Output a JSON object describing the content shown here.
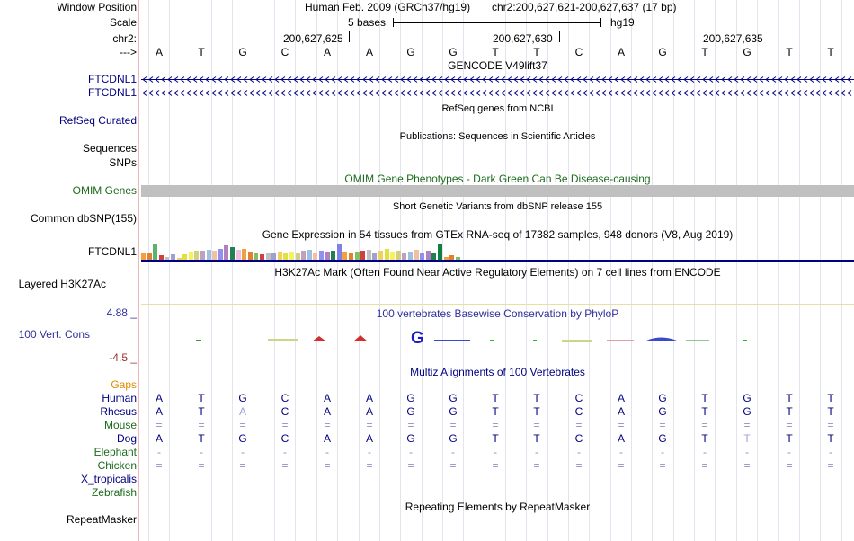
{
  "labels": {
    "window_position": "Window Position",
    "scale": "Scale",
    "chrom": "chr2:",
    "arrow": "--->",
    "ftcdnl1_a": "FTCDNL1",
    "ftcdnl1_b": "FTCDNL1",
    "refseq": "RefSeq Curated",
    "sequences": "Sequences",
    "snps": "SNPs",
    "omim": "OMIM Genes",
    "common_dbsnp": "Common dbSNP(155)",
    "gtex_gene": "FTCDNL1",
    "h3k27ac": "Layered H3K27Ac",
    "cons_max": "4.88 _",
    "cons_name": "100 Vert. Cons",
    "cons_min": "-4.5 _",
    "gaps": "Gaps",
    "repeatmasker": "RepeatMasker"
  },
  "header": {
    "assembly": "Human Feb. 2009 (GRCh37/hg19)",
    "position": "chr2:200,627,621-200,627,637 (17 bp)",
    "scale_text": "5 bases",
    "scale_db": "hg19",
    "ticks": [
      "200,627,625",
      "200,627,630",
      "200,627,635"
    ]
  },
  "bases": [
    "A",
    "T",
    "G",
    "C",
    "A",
    "A",
    "G",
    "G",
    "T",
    "T",
    "C",
    "A",
    "G",
    "T",
    "G",
    "T",
    "T"
  ],
  "tracks": {
    "gencode_title": "GENCODE V49lift37",
    "refseq_title": "RefSeq genes from NCBI",
    "publications_title": "Publications: Sequences in Scientific Articles",
    "omim_title": "OMIM Gene Phenotypes - Dark Green Can Be Disease-causing",
    "dbsnp_title": "Short Genetic Variants from dbSNP release 155",
    "gtex_title": "Gene Expression in 54 tissues from GTEx RNA-seq of 17382 samples, 948 donors (V8, Aug 2019)",
    "h3k27ac_title": "H3K27Ac Mark (Often Found Near Active Regulatory Elements) on 7 cell lines from ENCODE",
    "phylop_title": "100 vertebrates Basewise Conservation by PhyloP",
    "multiz_title": "Multiz Alignments of 100 Vertebrates",
    "repeat_title": "Repeating Elements by RepeatMasker"
  },
  "species": [
    {
      "name": "Human",
      "seq": [
        "A",
        "T",
        "G",
        "C",
        "A",
        "A",
        "G",
        "G",
        "T",
        "T",
        "C",
        "A",
        "G",
        "T",
        "G",
        "T",
        "T"
      ]
    },
    {
      "name": "Rhesus",
      "seq": [
        "A",
        "T",
        "A",
        "C",
        "A",
        "A",
        "G",
        "G",
        "T",
        "T",
        "C",
        "A",
        "G",
        "T",
        "G",
        "T",
        "T"
      ]
    },
    {
      "name": "Mouse",
      "seq": [
        "=",
        "=",
        "=",
        "=",
        "=",
        "=",
        "=",
        "=",
        "=",
        "=",
        "=",
        "=",
        "=",
        "=",
        "=",
        "=",
        "="
      ]
    },
    {
      "name": "Dog",
      "seq": [
        "A",
        "T",
        "G",
        "C",
        "A",
        "A",
        "G",
        "G",
        "T",
        "T",
        "C",
        "A",
        "G",
        "T",
        "T",
        "T",
        "T"
      ]
    },
    {
      "name": "Elephant",
      "seq": [
        "-",
        "-",
        "-",
        "-",
        "-",
        "-",
        "-",
        "-",
        "-",
        "-",
        "-",
        "-",
        "-",
        "-",
        "-",
        "-",
        "-"
      ]
    },
    {
      "name": "Chicken",
      "seq": [
        "=",
        "=",
        "=",
        "=",
        "=",
        "=",
        "=",
        "=",
        "=",
        "=",
        "=",
        "=",
        "=",
        "=",
        "=",
        "=",
        "="
      ]
    },
    {
      "name": "X_tropicalis",
      "seq": []
    },
    {
      "name": "Zebrafish",
      "seq": []
    }
  ],
  "gtex_values": [
    0.35,
    0.4,
    0.9,
    0.25,
    0.15,
    0.3,
    0.12,
    0.3,
    0.45,
    0.5,
    0.5,
    0.55,
    0.5,
    0.6,
    0.8,
    0.7,
    0.55,
    0.6,
    0.45,
    0.35,
    0.3,
    0.4,
    0.35,
    0.45,
    0.4,
    0.45,
    0.4,
    0.5,
    0.55,
    0.4,
    0.5,
    0.45,
    0.5,
    0.85,
    0.45,
    0.4,
    0.45,
    0.5,
    0.55,
    0.4,
    0.5,
    0.6,
    0.45,
    0.5,
    0.4,
    0.45,
    0.55,
    0.4,
    0.5,
    0.4,
    0.9,
    0.15,
    0.25,
    0.15
  ],
  "colors": {
    "navy": "#000080",
    "omim_band": "#c0c0c0",
    "omim_label": "#1d6a1d",
    "cons_max": "#30309a",
    "cons_min": "#9a3030",
    "gaps": "#e08a00"
  }
}
